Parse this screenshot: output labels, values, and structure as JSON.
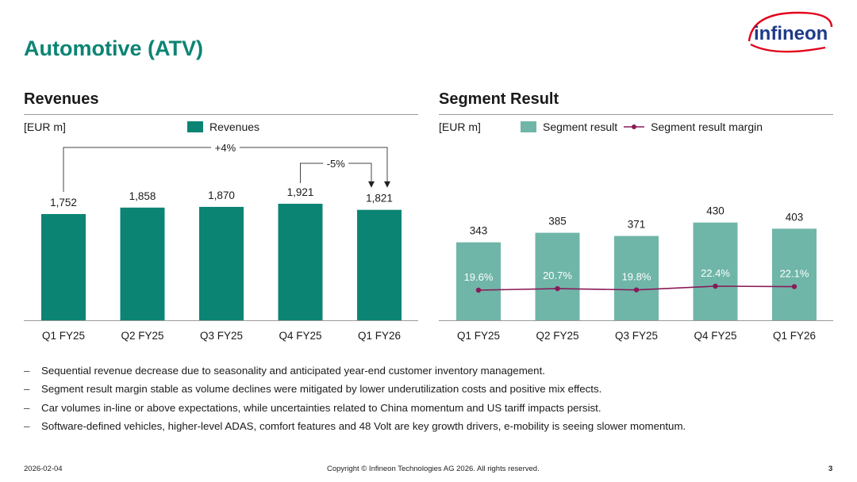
{
  "page_title": "Automotive (ATV)",
  "logo_text": "infineon",
  "colors": {
    "brand": "#0c8474",
    "segment": "#6fb6a8",
    "margin_line": "#8a1a5a"
  },
  "revenues": {
    "heading": "Revenues",
    "unit": "[EUR m]",
    "legend": "Revenues",
    "annot_yoy": "+4%",
    "annot_qoq": "-5%"
  },
  "segment": {
    "heading": "Segment Result",
    "unit": "[EUR m]",
    "legend_bar": "Segment result",
    "legend_line": "Segment result margin"
  },
  "chart_data": [
    {
      "type": "bar",
      "title": "Revenues",
      "unit": "[EUR m]",
      "categories": [
        "Q1 FY25",
        "Q2 FY25",
        "Q3 FY25",
        "Q4 FY25",
        "Q1 FY26"
      ],
      "series": [
        {
          "name": "Revenues",
          "values": [
            1752,
            1858,
            1870,
            1921,
            1821
          ],
          "labels": [
            "1,752",
            "1,858",
            "1,870",
            "1,921",
            "1,821"
          ]
        }
      ],
      "annotations": [
        {
          "text": "+4%",
          "from": "Q1 FY25",
          "to": "Q1 FY26"
        },
        {
          "text": "-5%",
          "from": "Q4 FY25",
          "to": "Q1 FY26"
        }
      ]
    },
    {
      "type": "bar",
      "title": "Segment Result",
      "unit": "[EUR m]",
      "categories": [
        "Q1 FY25",
        "Q2 FY25",
        "Q3 FY25",
        "Q4 FY25",
        "Q1 FY26"
      ],
      "series": [
        {
          "name": "Segment result",
          "values": [
            343,
            385,
            371,
            430,
            403
          ]
        },
        {
          "name": "Segment result margin",
          "type": "line",
          "values": [
            19.6,
            20.7,
            19.8,
            22.4,
            22.1
          ],
          "labels": [
            "19.6%",
            "20.7%",
            "19.8%",
            "22.4%",
            "22.1%"
          ]
        }
      ]
    }
  ],
  "bullets": [
    "Sequential revenue decrease due to seasonality and anticipated year-end customer inventory management.",
    "Segment result margin stable as volume declines were mitigated by lower underutilization costs and positive mix effects.",
    "Car volumes in-line or above expectations, while uncertainties related to China momentum and US tariff impacts persist.",
    "Software-defined vehicles, higher-level ADAS, comfort features and 48 Volt are key growth drivers, e-mobility is seeing slower momentum."
  ],
  "footer": {
    "date": "2026-02-04",
    "copyright": "Copyright © Infineon Technologies AG 2026. All rights reserved.",
    "page": "3"
  }
}
